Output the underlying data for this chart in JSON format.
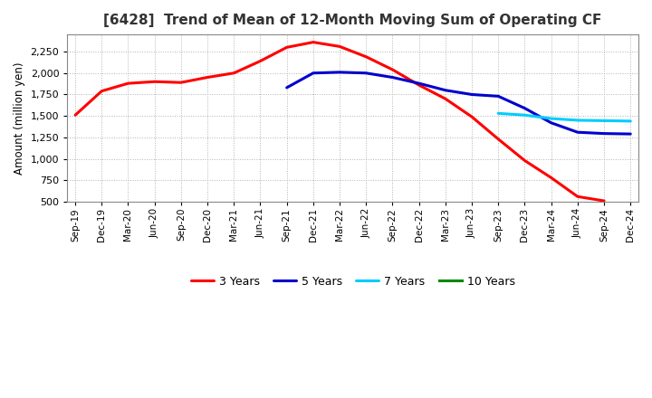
{
  "title": "[6428]  Trend of Mean of 12-Month Moving Sum of Operating CF",
  "ylabel": "Amount (million yen)",
  "background_color": "#ffffff",
  "grid_color": "#aaaaaa",
  "ylim": [
    500,
    2450
  ],
  "yticks": [
    500,
    750,
    1000,
    1250,
    1500,
    1750,
    2000,
    2250
  ],
  "x_labels": [
    "Sep-19",
    "Dec-19",
    "Mar-20",
    "Jun-20",
    "Sep-20",
    "Dec-20",
    "Mar-21",
    "Jun-21",
    "Sep-21",
    "Dec-21",
    "Mar-22",
    "Jun-22",
    "Sep-22",
    "Dec-22",
    "Mar-23",
    "Jun-23",
    "Sep-23",
    "Dec-23",
    "Mar-24",
    "Jun-24",
    "Sep-24",
    "Dec-24"
  ],
  "series_3y": {
    "label": "3 Years",
    "color": "#ff0000",
    "linewidth": 2.2,
    "x": [
      "Sep-19",
      "Dec-19",
      "Mar-20",
      "Jun-20",
      "Sep-20",
      "Dec-20",
      "Mar-21",
      "Jun-21",
      "Sep-21",
      "Dec-21",
      "Mar-22",
      "Jun-22",
      "Sep-22",
      "Dec-22",
      "Mar-23",
      "Jun-23",
      "Sep-23",
      "Dec-23",
      "Mar-24",
      "Jun-24",
      "Sep-24"
    ],
    "y": [
      1510,
      1790,
      1880,
      1900,
      1890,
      1950,
      2000,
      2140,
      2300,
      2360,
      2310,
      2190,
      2040,
      1860,
      1700,
      1490,
      1230,
      980,
      780,
      560,
      510
    ]
  },
  "series_5y": {
    "label": "5 Years",
    "color": "#0000cc",
    "linewidth": 2.2,
    "x": [
      "Sep-21",
      "Dec-21",
      "Mar-22",
      "Jun-22",
      "Sep-22",
      "Dec-22",
      "Mar-23",
      "Jun-23",
      "Sep-23",
      "Dec-23",
      "Mar-24",
      "Jun-24",
      "Sep-24",
      "Dec-24"
    ],
    "y": [
      1830,
      2000,
      2010,
      2000,
      1950,
      1880,
      1800,
      1750,
      1730,
      1590,
      1420,
      1310,
      1295,
      1290
    ]
  },
  "series_7y": {
    "label": "7 Years",
    "color": "#00ccff",
    "linewidth": 2.2,
    "x": [
      "Sep-23",
      "Dec-23",
      "Mar-24",
      "Jun-24",
      "Sep-24",
      "Dec-24"
    ],
    "y": [
      1530,
      1510,
      1470,
      1450,
      1445,
      1440
    ]
  },
  "series_10y": {
    "label": "10 Years",
    "color": "#008800",
    "linewidth": 2.2,
    "x": [],
    "y": []
  },
  "title_color": "#333333",
  "title_fontsize": 11,
  "ylabel_fontsize": 8.5,
  "tick_fontsize": 8,
  "xtick_fontsize": 7.5,
  "legend_fontsize": 9
}
